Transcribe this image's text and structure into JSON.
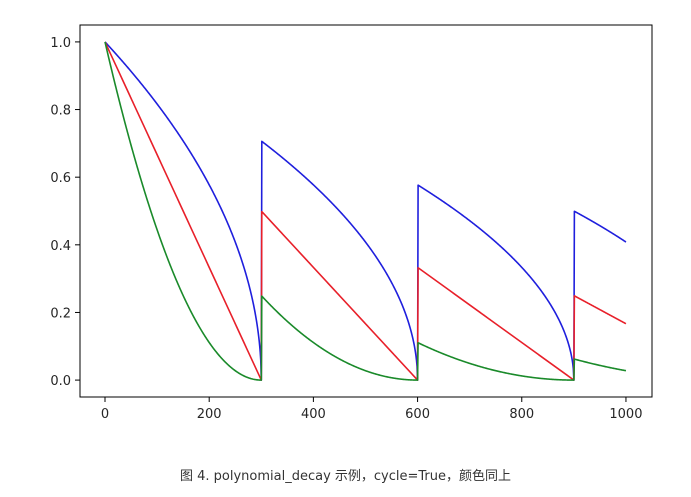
{
  "chart_data": {
    "type": "line",
    "title": "",
    "xlabel": "",
    "ylabel": "",
    "xlim": [
      -48,
      1050
    ],
    "ylim": [
      -0.05,
      1.05
    ],
    "x_ticks": [
      0,
      200,
      400,
      600,
      800,
      1000
    ],
    "y_ticks": [
      0.0,
      0.2,
      0.4,
      0.6,
      0.8,
      1.0
    ],
    "x_tick_labels": [
      "0",
      "200",
      "400",
      "600",
      "800",
      "1000"
    ],
    "y_tick_labels": [
      "0.0",
      "0.2",
      "0.4",
      "0.6",
      "0.8",
      "1.0"
    ],
    "grid": false,
    "series_params": {
      "decay_steps": 300,
      "end_value": 0.0,
      "initial_value": 1.0,
      "cycle": true,
      "x_range": [
        0,
        1000
      ]
    },
    "series": [
      {
        "color": "#1f1fdd",
        "power": 0.5
      },
      {
        "color": "#e8202a",
        "power": 1.0
      },
      {
        "color": "#1a8a2a",
        "power": 2.0
      }
    ]
  },
  "caption": "图 4. polynomial_decay 示例，cycle=True，颜色同上"
}
